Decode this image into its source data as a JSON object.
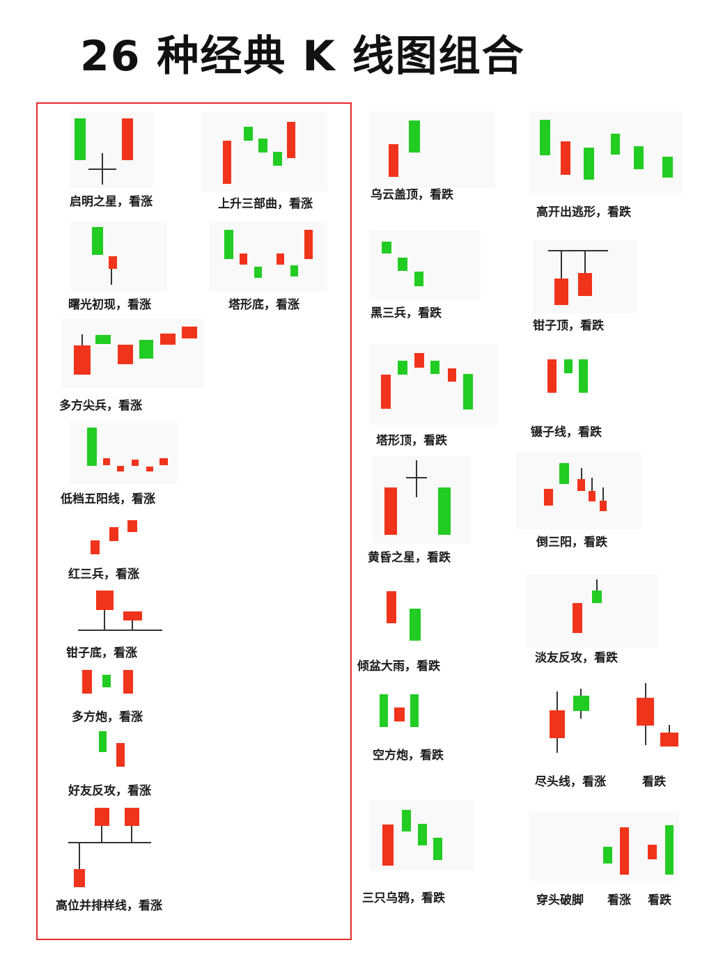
{
  "title": "26 种经典 K 线图组合",
  "colors": {
    "bull": "#f0331b",
    "bear": "#22cc22",
    "wick": "#333333",
    "frame": "#e52a2a"
  },
  "patterns": [
    {
      "id": "p1",
      "label": "启明之星，看涨"
    },
    {
      "id": "p2",
      "label": "上升三部曲，看涨"
    },
    {
      "id": "p3",
      "label": "曙光初现，看涨"
    },
    {
      "id": "p4",
      "label": "塔形底，看涨"
    },
    {
      "id": "p5",
      "label": "多方尖兵，看涨"
    },
    {
      "id": "p6",
      "label": "低档五阳线，看涨"
    },
    {
      "id": "p7",
      "label": "红三兵，看涨"
    },
    {
      "id": "p8",
      "label": "钳子底，看涨"
    },
    {
      "id": "p9",
      "label": "多方炮，看涨"
    },
    {
      "id": "p10",
      "label": "好友反攻，看涨"
    },
    {
      "id": "p11",
      "label": "高位并排样线，看涨"
    },
    {
      "id": "p12",
      "label": "乌云盖顶，看跌"
    },
    {
      "id": "p13",
      "label": "黑三兵，看跌"
    },
    {
      "id": "p14",
      "label": "塔形顶，看跌"
    },
    {
      "id": "p15",
      "label": "黄昏之星，看跌"
    },
    {
      "id": "p16",
      "label": "倾盆大雨，看跌"
    },
    {
      "id": "p17",
      "label": "空方炮，看跌"
    },
    {
      "id": "p18",
      "label": "三只乌鸦，看跌"
    },
    {
      "id": "p19",
      "label": "高开出逃形，看跌"
    },
    {
      "id": "p20",
      "label": "钳子顶，看跌"
    },
    {
      "id": "p21",
      "label": "镊子线，看跌"
    },
    {
      "id": "p22",
      "label": "倒三阳，看跌"
    },
    {
      "id": "p23",
      "label": "淡友反攻，看跌"
    },
    {
      "id": "p24",
      "label": "尽头线，看涨",
      "label2": "看跌"
    },
    {
      "id": "p25",
      "label": "穿头破脚",
      "label2": "看涨",
      "label3": "看跌"
    }
  ]
}
